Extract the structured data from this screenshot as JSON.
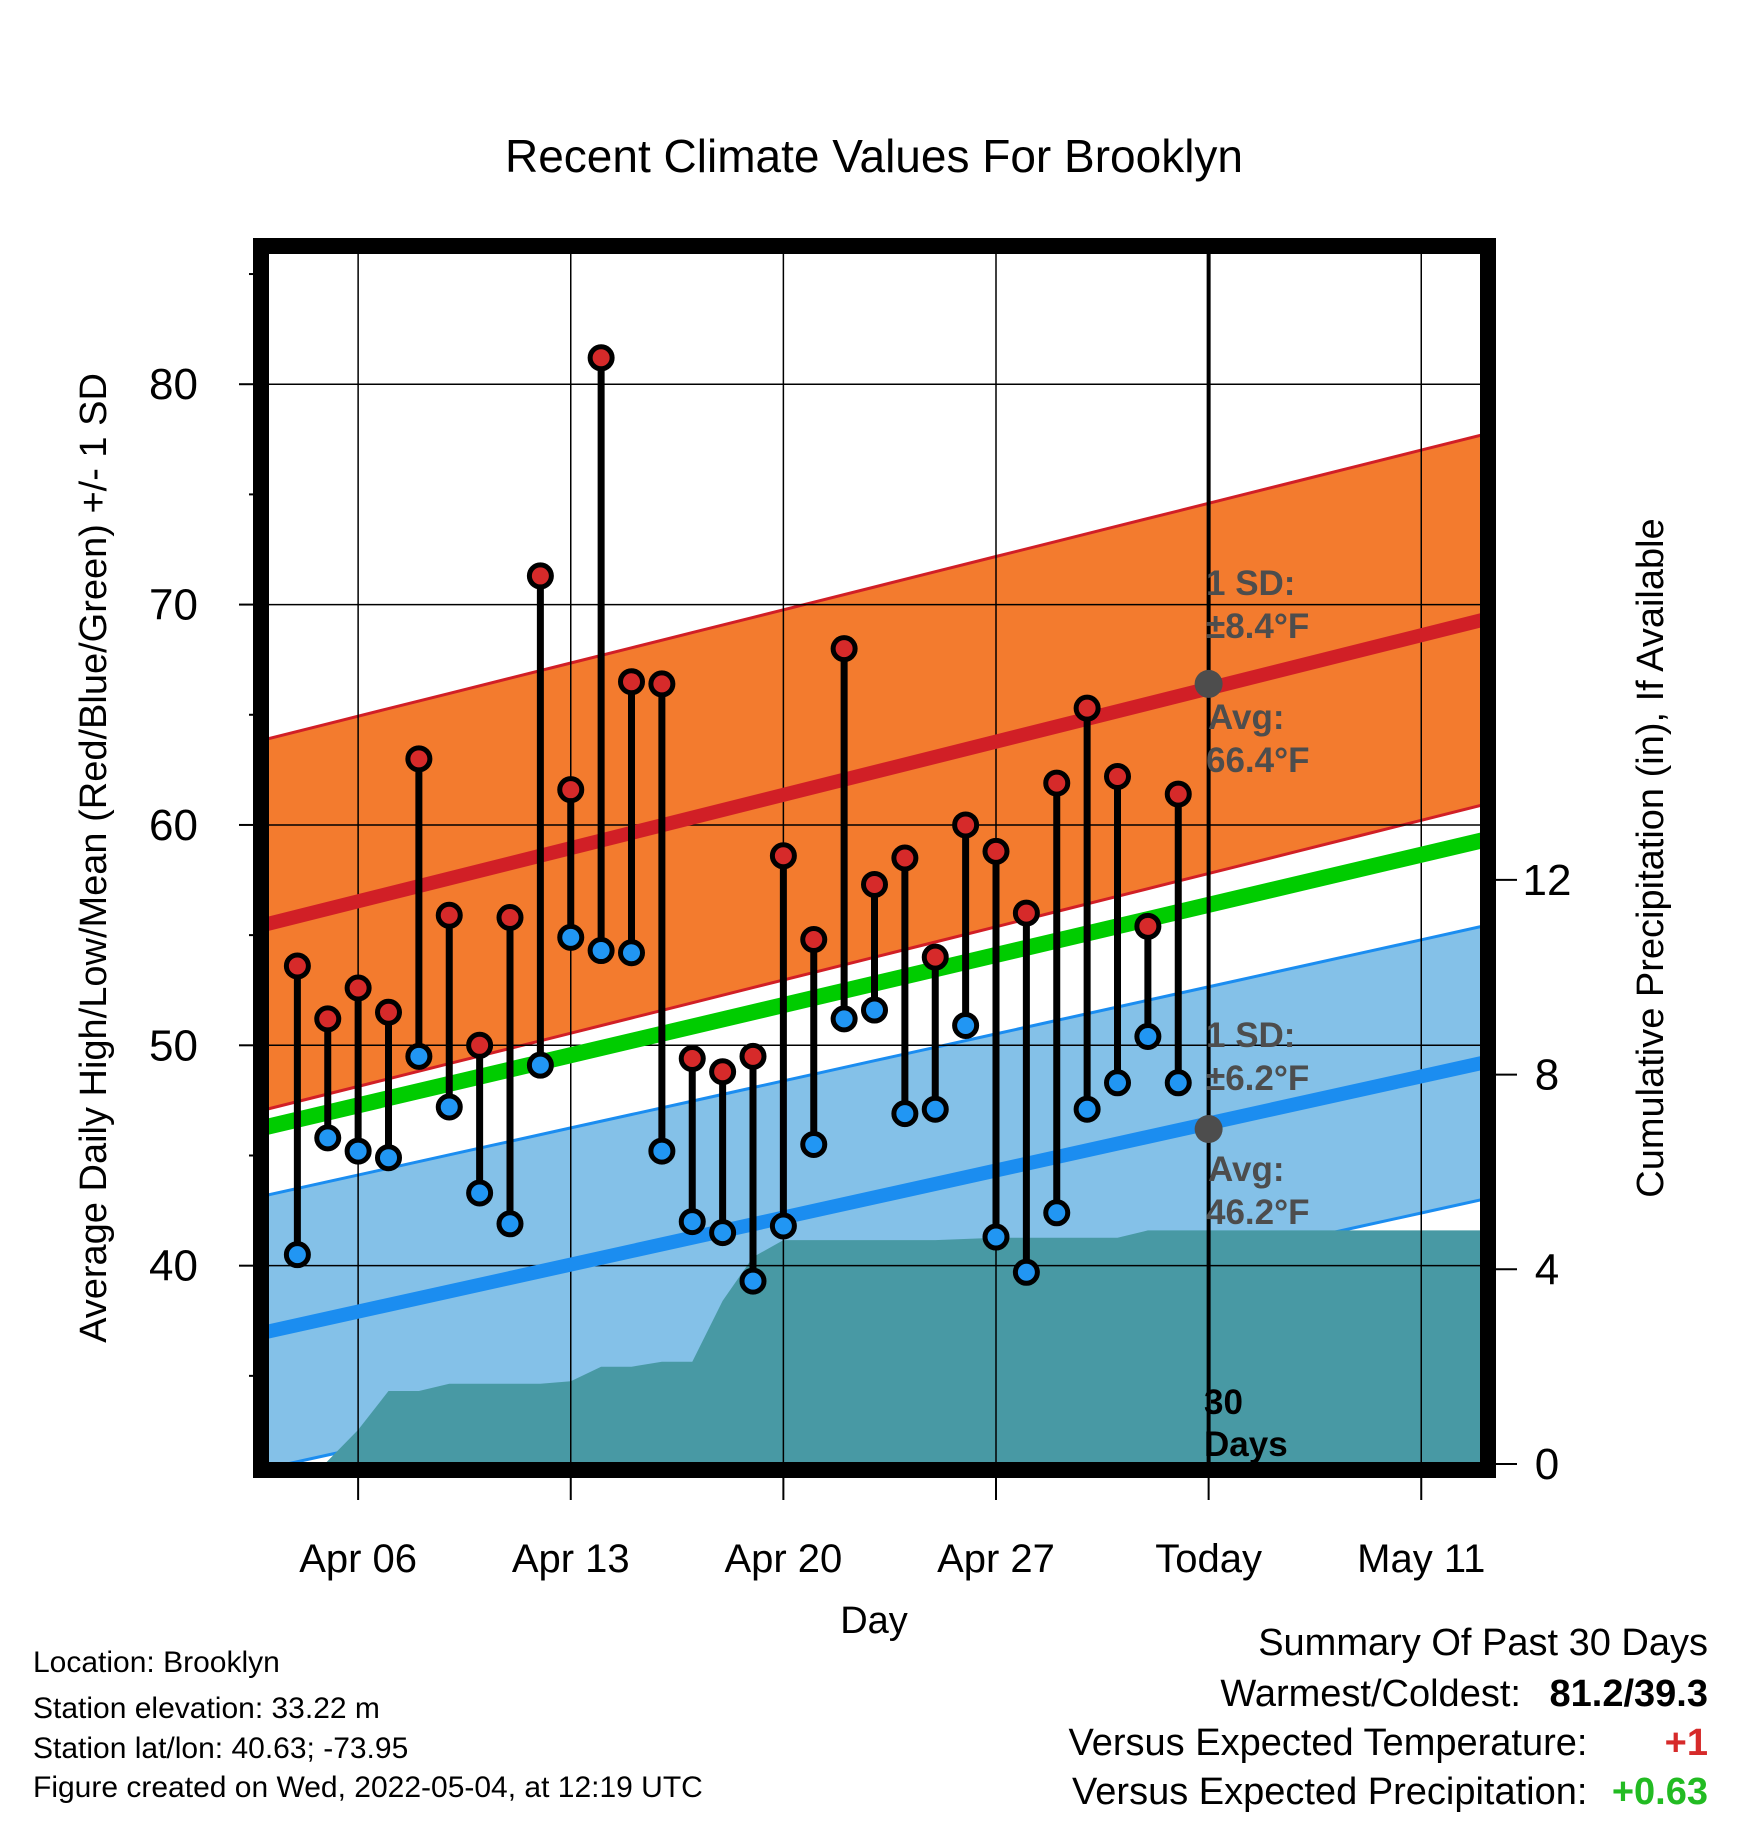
{
  "chart_data": {
    "type": "line",
    "title": "Recent Climate Values For Brooklyn",
    "xlabel": "Day",
    "ylabel_left": "Average Daily High/Low/Mean (Red/Blue/Green) +/- 1 SD",
    "ylabel_right": "Cumulative Precipitation (in), If Available",
    "x_ticks": [
      {
        "day": 6,
        "label": "Apr 06"
      },
      {
        "day": 13,
        "label": "Apr 13"
      },
      {
        "day": 20,
        "label": "Apr 20"
      },
      {
        "day": 27,
        "label": "Apr 27"
      },
      {
        "day": 34,
        "label": "Today"
      },
      {
        "day": 41,
        "label": "May 11"
      }
    ],
    "y_ticks_left": [
      40,
      50,
      60,
      70,
      80
    ],
    "y_ticks_right": [
      0,
      4,
      8,
      12
    ],
    "xlim_days": [
      3,
      43
    ],
    "ylim_left": [
      31,
      86
    ],
    "ylim_right": [
      0,
      24.9
    ],
    "today_day": 34,
    "today_label": [
      "30",
      "Days"
    ],
    "normal_high": {
      "start": 55.5,
      "end": 69.3,
      "sd": 8.4
    },
    "normal_low": {
      "start": 37.0,
      "end": 49.2,
      "sd": 6.2
    },
    "normal_mean": {
      "start": 46.3,
      "end": 59.3
    },
    "annotations": {
      "high_sd": [
        "1 SD:",
        "±8.4°F"
      ],
      "high_avg": [
        "Avg:",
        "66.4°F"
      ],
      "low_sd": [
        "1 SD:",
        "±6.2°F"
      ],
      "low_avg": [
        "Avg:",
        "46.2°F"
      ],
      "high_avg_value": 66.4,
      "low_avg_value": 46.2
    },
    "daily": [
      {
        "day": 4,
        "high": 53.6,
        "low": 40.5
      },
      {
        "day": 5,
        "high": 51.2,
        "low": 45.8
      },
      {
        "day": 6,
        "high": 52.6,
        "low": 45.2
      },
      {
        "day": 7,
        "high": 51.5,
        "low": 44.9
      },
      {
        "day": 8,
        "high": 63.0,
        "low": 49.5
      },
      {
        "day": 9,
        "high": 55.9,
        "low": 47.2
      },
      {
        "day": 10,
        "high": 50.0,
        "low": 43.3
      },
      {
        "day": 11,
        "high": 55.8,
        "low": 41.9
      },
      {
        "day": 12,
        "high": 71.3,
        "low": 49.1
      },
      {
        "day": 13,
        "high": 61.6,
        "low": 54.9
      },
      {
        "day": 14,
        "high": 81.2,
        "low": 54.3
      },
      {
        "day": 15,
        "high": 66.5,
        "low": 54.2
      },
      {
        "day": 16,
        "high": 66.4,
        "low": 45.2
      },
      {
        "day": 17,
        "high": 49.4,
        "low": 42.0
      },
      {
        "day": 18,
        "high": 48.8,
        "low": 41.5
      },
      {
        "day": 19,
        "high": 49.5,
        "low": 39.3
      },
      {
        "day": 20,
        "high": 58.6,
        "low": 41.8
      },
      {
        "day": 21,
        "high": 54.8,
        "low": 45.5
      },
      {
        "day": 22,
        "high": 68.0,
        "low": 51.2
      },
      {
        "day": 23,
        "high": 57.3,
        "low": 51.6
      },
      {
        "day": 24,
        "high": 58.5,
        "low": 46.9
      },
      {
        "day": 25,
        "high": 54.0,
        "low": 47.1
      },
      {
        "day": 26,
        "high": 60.0,
        "low": 50.9
      },
      {
        "day": 27,
        "high": 58.8,
        "low": 41.3
      },
      {
        "day": 28,
        "high": 56.0,
        "low": 39.7
      },
      {
        "day": 29,
        "high": 61.9,
        "low": 42.4
      },
      {
        "day": 30,
        "high": 65.3,
        "low": 47.1
      },
      {
        "day": 31,
        "high": 62.2,
        "low": 48.3
      },
      {
        "day": 32,
        "high": 55.4,
        "low": 50.4
      },
      {
        "day": 33,
        "high": 61.4,
        "low": 48.3
      }
    ],
    "precipitation_cumulative": [
      {
        "day": 3,
        "in": 0.0
      },
      {
        "day": 4.9,
        "in": 0.0
      },
      {
        "day": 6.0,
        "in": 0.7
      },
      {
        "day": 7.0,
        "in": 1.5
      },
      {
        "day": 8.0,
        "in": 1.5
      },
      {
        "day": 9.0,
        "in": 1.65
      },
      {
        "day": 12.0,
        "in": 1.65
      },
      {
        "day": 13.0,
        "in": 1.7
      },
      {
        "day": 14.0,
        "in": 2.0
      },
      {
        "day": 15.0,
        "in": 2.0
      },
      {
        "day": 16.0,
        "in": 2.1
      },
      {
        "day": 17.0,
        "in": 2.1
      },
      {
        "day": 18.0,
        "in": 3.35
      },
      {
        "day": 19.0,
        "in": 4.25
      },
      {
        "day": 20.0,
        "in": 4.6
      },
      {
        "day": 25.0,
        "in": 4.6
      },
      {
        "day": 27.0,
        "in": 4.65
      },
      {
        "day": 31.0,
        "in": 4.65
      },
      {
        "day": 32.0,
        "in": 4.8
      },
      {
        "day": 43.0,
        "in": 4.8
      }
    ]
  },
  "info": {
    "location": "Location: Brooklyn",
    "elevation": "Station elevation: 33.22 m",
    "latlon": "Station lat/lon: 40.63; -73.95",
    "created": "Figure created on Wed, 2022-05-04, at 12:19 UTC"
  },
  "summary": {
    "title": "Summary Of Past 30 Days",
    "warmest_coldest_label": "Warmest/Coldest:",
    "warmest_coldest_value": "81.2/39.3",
    "temp_label": "Versus Expected Temperature:",
    "temp_value": "+1",
    "precip_label": "Versus Expected Precipitation:",
    "precip_value": "+0.63"
  },
  "colors": {
    "high_band": "#f37b2e",
    "high_line": "#d11f26",
    "low_band": "#84c1e8",
    "low_line": "#1b8df0",
    "mean_line": "#00cc00",
    "precip": "#4899a4",
    "high_point": "#d62a2a",
    "low_point": "#2196f3",
    "annotation": "#4d4d4d",
    "temp_value": "#d62a2a",
    "precip_value": "#22bb22"
  }
}
